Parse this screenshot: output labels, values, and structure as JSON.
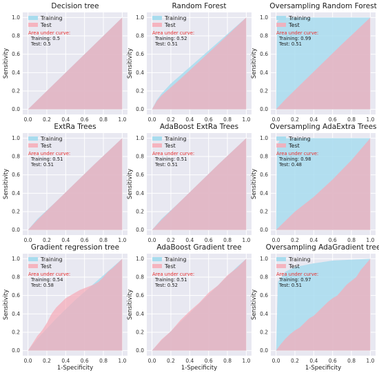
{
  "colors": {
    "background": "#e8e8f1",
    "grid": "#ffffff",
    "training": "#a8dcee",
    "test": "#f7aab6",
    "overlap": "#d9adbf",
    "auc_header": "#e8302f"
  },
  "legend": {
    "training": "Training",
    "test": "Test"
  },
  "auc_header": "Area under curve:",
  "chart_data": [
    {
      "type": "area",
      "title": "Decision tree",
      "xlabel": "",
      "ylabel": "Sensitivity",
      "xlim": [
        0,
        1
      ],
      "ylim": [
        0,
        1
      ],
      "ticks": [
        "0.0",
        "0.2",
        "0.4",
        "0.6",
        "0.8",
        "1.0"
      ],
      "grid": true,
      "legend": "top-left",
      "auc": {
        "training": "Training: 0.5",
        "test": "Test: 0.5"
      },
      "series": [
        {
          "name": "Training",
          "x": [
            0,
            1
          ],
          "y": [
            0,
            1
          ]
        },
        {
          "name": "Test",
          "x": [
            0,
            1
          ],
          "y": [
            0,
            1
          ]
        }
      ]
    },
    {
      "type": "area",
      "title": "Random Forest",
      "xlabel": "",
      "ylabel": "Sensitivity",
      "xlim": [
        0,
        1
      ],
      "ylim": [
        0,
        1
      ],
      "ticks": [
        "0.0",
        "0.2",
        "0.4",
        "0.6",
        "0.8",
        "1.0"
      ],
      "grid": true,
      "legend": "top-left",
      "auc": {
        "training": "Training: 0.52",
        "test": "Test: 0.51"
      },
      "series": [
        {
          "name": "Training",
          "x": [
            0,
            0.05,
            0.1,
            0.2,
            0.3,
            0.5,
            0.7,
            1
          ],
          "y": [
            0,
            0.1,
            0.17,
            0.28,
            0.37,
            0.55,
            0.73,
            1
          ]
        },
        {
          "name": "Test",
          "x": [
            0,
            0.05,
            0.1,
            0.2,
            0.3,
            0.5,
            0.7,
            1
          ],
          "y": [
            0,
            0.09,
            0.15,
            0.24,
            0.33,
            0.52,
            0.71,
            1
          ]
        }
      ]
    },
    {
      "type": "area",
      "title": "Oversampling Random Forest",
      "xlabel": "",
      "ylabel": "Sensitivity",
      "xlim": [
        0,
        1
      ],
      "ylim": [
        0,
        1
      ],
      "ticks": [
        "0.0",
        "0.2",
        "0.4",
        "0.6",
        "0.8",
        "1.0"
      ],
      "grid": true,
      "legend": "top-left",
      "auc": {
        "training": "Training: 0.99",
        "test": "Test: 0.51"
      },
      "series": [
        {
          "name": "Training",
          "x": [
            0,
            0.01,
            0.05,
            1
          ],
          "y": [
            0,
            0.95,
            1,
            1
          ]
        },
        {
          "name": "Test",
          "x": [
            0,
            0.1,
            0.3,
            0.5,
            0.7,
            1
          ],
          "y": [
            0,
            0.11,
            0.31,
            0.51,
            0.71,
            1
          ]
        }
      ]
    },
    {
      "type": "area",
      "title": "ExtRa Trees",
      "xlabel": "",
      "ylabel": "Sensitivity",
      "xlim": [
        0,
        1
      ],
      "ylim": [
        0,
        1
      ],
      "ticks": [
        "0.0",
        "0.2",
        "0.4",
        "0.6",
        "0.8",
        "1.0"
      ],
      "grid": true,
      "legend": "top-left",
      "auc": {
        "training": "Training: 0.51",
        "test": "Test: 0.51"
      },
      "series": [
        {
          "name": "Training",
          "x": [
            0,
            0.1,
            0.3,
            0.5,
            0.7,
            1
          ],
          "y": [
            0,
            0.12,
            0.31,
            0.51,
            0.71,
            1
          ]
        },
        {
          "name": "Test",
          "x": [
            0,
            0.1,
            0.3,
            0.5,
            0.7,
            1
          ],
          "y": [
            0,
            0.11,
            0.31,
            0.51,
            0.71,
            1
          ]
        }
      ]
    },
    {
      "type": "area",
      "title": "AdaBoost ExtRa Trees",
      "xlabel": "",
      "ylabel": "Sensitivity",
      "xlim": [
        0,
        1
      ],
      "ylim": [
        0,
        1
      ],
      "ticks": [
        "0.0",
        "0.2",
        "0.4",
        "0.6",
        "0.8",
        "1.0"
      ],
      "grid": true,
      "legend": "top-left",
      "auc": {
        "training": "Training: 0.51",
        "test": "Test: 0.51"
      },
      "series": [
        {
          "name": "Training",
          "x": [
            0,
            0.1,
            0.3,
            0.5,
            0.7,
            1
          ],
          "y": [
            0,
            0.12,
            0.31,
            0.51,
            0.71,
            1
          ]
        },
        {
          "name": "Test",
          "x": [
            0,
            0.1,
            0.3,
            0.5,
            0.7,
            1
          ],
          "y": [
            0,
            0.11,
            0.31,
            0.51,
            0.71,
            1
          ]
        }
      ]
    },
    {
      "type": "area",
      "title": "Oversampling AdaExtra Trees",
      "xlabel": "",
      "ylabel": "Sensitivity",
      "xlim": [
        0,
        1
      ],
      "ylim": [
        0,
        1
      ],
      "ticks": [
        "0.0",
        "0.2",
        "0.4",
        "0.6",
        "0.8",
        "1.0"
      ],
      "grid": true,
      "legend": "top-left",
      "auc": {
        "training": "Training: 0.98",
        "test": "Test: 0.48"
      },
      "series": [
        {
          "name": "Training",
          "x": [
            0,
            0.01,
            0.05,
            1
          ],
          "y": [
            0,
            0.92,
            1,
            1
          ]
        },
        {
          "name": "Test",
          "x": [
            0,
            0.1,
            0.2,
            0.4,
            0.6,
            0.8,
            1
          ],
          "y": [
            0,
            0.1,
            0.2,
            0.36,
            0.55,
            0.76,
            1
          ]
        }
      ]
    },
    {
      "type": "area",
      "title": "Gradient regression tree",
      "xlabel": "1-Specificity",
      "ylabel": "Sensitivity",
      "xlim": [
        0,
        1
      ],
      "ylim": [
        0,
        1
      ],
      "ticks": [
        "0.0",
        "0.2",
        "0.4",
        "0.6",
        "0.8",
        "1.0"
      ],
      "grid": true,
      "legend": "top-left",
      "auc": {
        "training": "Training: 0.54",
        "test": "Test: 0.58"
      },
      "series": [
        {
          "name": "Training",
          "x": [
            0,
            0.1,
            0.2,
            0.3,
            0.4,
            0.5,
            0.6,
            0.7,
            0.8,
            0.9,
            1
          ],
          "y": [
            0,
            0.13,
            0.24,
            0.35,
            0.45,
            0.55,
            0.64,
            0.73,
            0.82,
            0.91,
            1
          ]
        },
        {
          "name": "Test",
          "x": [
            0,
            0.05,
            0.1,
            0.15,
            0.2,
            0.25,
            0.3,
            0.35,
            0.4,
            0.45,
            0.5,
            0.55,
            0.6,
            0.65,
            0.7,
            0.75,
            0.8,
            0.85,
            0.9,
            0.95,
            1
          ],
          "y": [
            0,
            0.08,
            0.16,
            0.22,
            0.3,
            0.4,
            0.47,
            0.52,
            0.57,
            0.6,
            0.63,
            0.66,
            0.68,
            0.7,
            0.72,
            0.75,
            0.8,
            0.86,
            0.9,
            0.95,
            1
          ]
        }
      ]
    },
    {
      "type": "area",
      "title": "AdaBoost Gradient tree",
      "xlabel": "1-Specificity",
      "ylabel": "Sensitivity",
      "xlim": [
        0,
        1
      ],
      "ylim": [
        0,
        1
      ],
      "ticks": [
        "0.0",
        "0.2",
        "0.4",
        "0.6",
        "0.8",
        "1.0"
      ],
      "grid": true,
      "legend": "top-left",
      "auc": {
        "training": "Training: 0.51",
        "test": "Test: 0.52"
      },
      "series": [
        {
          "name": "Training",
          "x": [
            0,
            0.1,
            0.2,
            0.3,
            0.4,
            0.5,
            0.6,
            0.7,
            0.8,
            0.9,
            1
          ],
          "y": [
            0,
            0.11,
            0.21,
            0.31,
            0.41,
            0.51,
            0.61,
            0.71,
            0.81,
            0.91,
            1
          ]
        },
        {
          "name": "Test",
          "x": [
            0,
            0.1,
            0.2,
            0.3,
            0.4,
            0.5,
            0.6,
            0.7,
            0.8,
            0.9,
            1
          ],
          "y": [
            0,
            0.12,
            0.21,
            0.33,
            0.43,
            0.52,
            0.63,
            0.71,
            0.82,
            0.9,
            1
          ]
        }
      ]
    },
    {
      "type": "area",
      "title": "Oversampling AdaGradient tree",
      "xlabel": "1-Specificity",
      "ylabel": "Sensitivity",
      "xlim": [
        0,
        1
      ],
      "ylim": [
        0,
        1
      ],
      "ticks": [
        "0.0",
        "0.2",
        "0.4",
        "0.6",
        "0.8",
        "1.0"
      ],
      "grid": true,
      "legend": "top-left",
      "auc": {
        "training": "Training: 0.97",
        "test": "Test: 0.51"
      },
      "series": [
        {
          "name": "Training",
          "x": [
            0,
            0.02,
            0.1,
            0.2,
            0.4,
            0.6,
            0.8,
            1
          ],
          "y": [
            0,
            0.75,
            0.86,
            0.91,
            0.95,
            0.98,
            0.99,
            1
          ]
        },
        {
          "name": "Test",
          "x": [
            0,
            0.05,
            0.1,
            0.15,
            0.2,
            0.25,
            0.3,
            0.35,
            0.4,
            0.45,
            0.5,
            0.55,
            0.6,
            0.65,
            0.7,
            0.75,
            0.8,
            0.85,
            0.9,
            0.95,
            1
          ],
          "y": [
            0,
            0.07,
            0.13,
            0.18,
            0.22,
            0.25,
            0.3,
            0.35,
            0.38,
            0.43,
            0.48,
            0.53,
            0.57,
            0.6,
            0.66,
            0.72,
            0.76,
            0.8,
            0.88,
            0.94,
            1
          ]
        }
      ]
    }
  ]
}
